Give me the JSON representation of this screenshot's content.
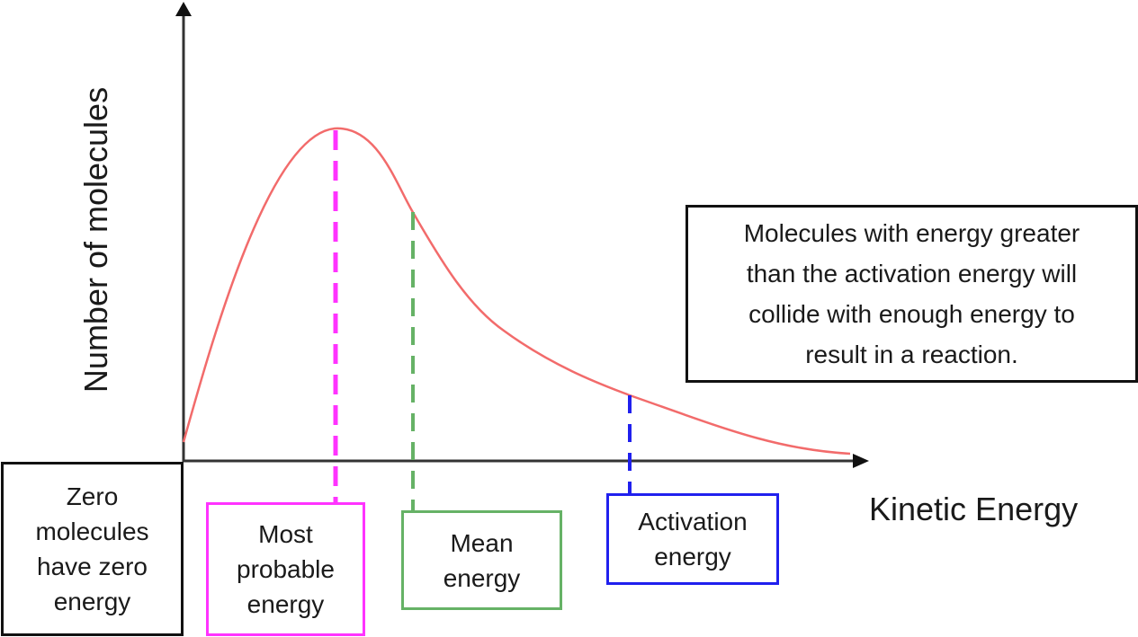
{
  "labels": {
    "y_axis": "Number of molecules",
    "x_axis": "Kinetic Energy",
    "zero": "Zero\nmolecules\nhave zero\nenergy",
    "most_probable": "Most\nprobable\nenergy",
    "mean": "Mean\nenergy",
    "activation": "Activation\nenergy",
    "info": "Molecules with energy greater\nthan the activation energy will\ncollide with enough energy to\nresult in a reaction."
  },
  "colors": {
    "curve": "#f26b6b",
    "axis": "#333333",
    "most_probable": "#ff33ff",
    "mean": "#66b266",
    "activation": "#2020ee"
  }
}
